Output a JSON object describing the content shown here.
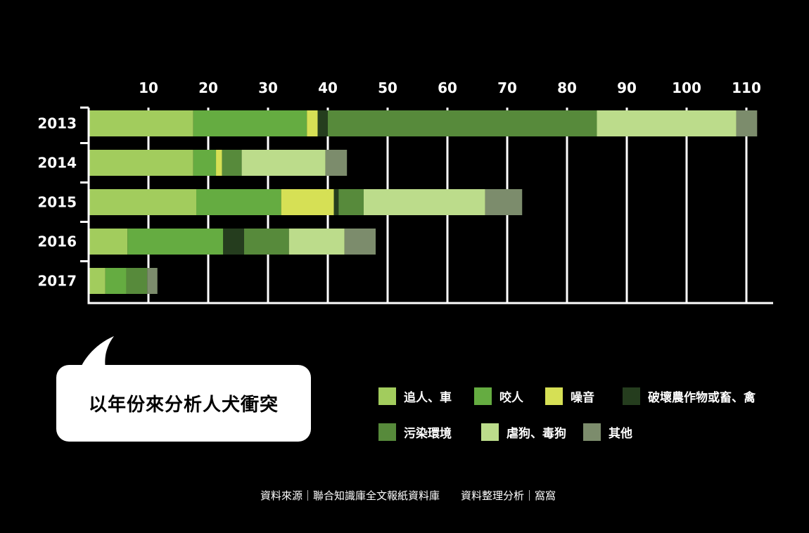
{
  "chart_data": {
    "type": "bar",
    "orientation": "horizontal",
    "stacked": true,
    "categories": [
      "2013",
      "2014",
      "2015",
      "2016",
      "2017"
    ],
    "series": [
      {
        "name": "追人、車",
        "color": "#a2cc5d",
        "values": [
          17.5,
          17.5,
          18,
          6.5,
          2.8
        ]
      },
      {
        "name": "咬人",
        "color": "#65ac41",
        "values": [
          19,
          3.8,
          14.2,
          16,
          3.5
        ]
      },
      {
        "name": "噪音",
        "color": "#d6e055",
        "values": [
          1.8,
          1,
          8.8,
          0,
          0
        ]
      },
      {
        "name": "破壞農作物或畜、禽",
        "color": "#253d1e",
        "values": [
          1.7,
          0,
          0.8,
          3.5,
          0
        ]
      },
      {
        "name": "污染環境",
        "color": "#578a3b",
        "values": [
          45,
          3.3,
          4.2,
          7.5,
          3.5
        ]
      },
      {
        "name": "虐狗、毒狗",
        "color": "#bcdc8b",
        "values": [
          23.3,
          14,
          20.3,
          9.3,
          0
        ]
      },
      {
        "name": "其他",
        "color": "#7c8c6c",
        "values": [
          3.5,
          3.6,
          6.2,
          5.2,
          1.7
        ]
      }
    ],
    "x_ticks": [
      10,
      20,
      30,
      40,
      50,
      60,
      70,
      80,
      90,
      100,
      110
    ],
    "xlim": [
      0,
      113
    ],
    "grid": true,
    "legend_position": "bottom-right"
  },
  "callout": {
    "text": "以年份來分析人犬衝突"
  },
  "source": {
    "text": "資料來源｜聯合知識庫全文報紙資料庫　　資料整理分析｜窩窩"
  },
  "colors": {
    "background": "#000000",
    "axis": "#ffffff",
    "callout_bg": "#ffffff"
  }
}
